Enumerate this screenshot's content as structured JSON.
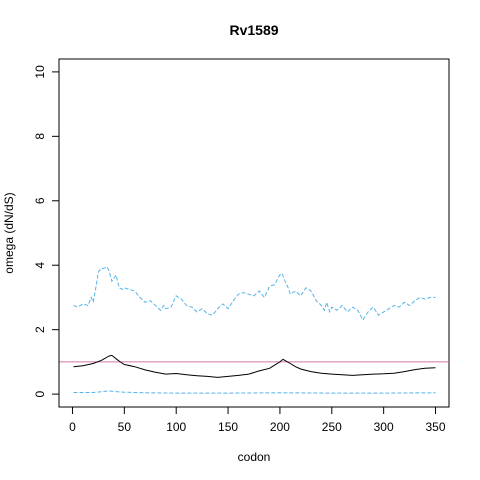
{
  "chart_data": {
    "type": "line",
    "title": "Rv1589",
    "xlabel": "codon",
    "ylabel": "omega (dN/dS)",
    "xlim": [
      -13,
      363
    ],
    "ylim": [
      -0.4,
      10.4
    ],
    "x_ticks": [
      0,
      50,
      100,
      150,
      200,
      250,
      300,
      350
    ],
    "y_ticks": [
      0,
      2,
      4,
      6,
      8,
      10
    ],
    "reference_line": {
      "y": 1,
      "color": "#cc79a7"
    },
    "series": [
      {
        "style": "dashed",
        "color": "#56b4e9",
        "x": [
          1,
          5,
          10,
          15,
          18,
          20,
          22,
          25,
          28,
          30,
          33,
          35,
          38,
          42,
          45,
          48,
          50,
          55,
          60,
          65,
          70,
          75,
          80,
          85,
          88,
          90,
          95,
          100,
          105,
          110,
          115,
          120,
          125,
          130,
          135,
          140,
          145,
          150,
          155,
          160,
          165,
          170,
          175,
          180,
          185,
          190,
          195,
          198,
          200,
          202,
          205,
          208,
          210,
          215,
          220,
          225,
          230,
          235,
          240,
          243,
          245,
          248,
          250,
          255,
          260,
          265,
          270,
          275,
          280,
          285,
          290,
          295,
          300,
          305,
          310,
          315,
          320,
          325,
          330,
          335,
          340,
          345,
          350
        ],
        "y": [
          2.75,
          2.7,
          2.8,
          2.75,
          3.0,
          2.85,
          3.2,
          3.8,
          3.9,
          3.9,
          3.95,
          3.85,
          3.5,
          3.7,
          3.3,
          3.25,
          3.3,
          3.25,
          3.2,
          3.0,
          2.85,
          2.9,
          2.75,
          2.6,
          2.75,
          2.65,
          2.7,
          3.05,
          2.95,
          2.75,
          2.7,
          2.55,
          2.65,
          2.5,
          2.45,
          2.65,
          2.8,
          2.65,
          2.9,
          3.1,
          3.15,
          3.1,
          3.05,
          3.2,
          3.0,
          3.35,
          3.4,
          3.6,
          3.7,
          3.75,
          3.5,
          3.3,
          3.1,
          3.2,
          3.05,
          3.3,
          3.2,
          2.9,
          2.75,
          2.6,
          2.85,
          2.55,
          2.7,
          2.6,
          2.75,
          2.55,
          2.7,
          2.6,
          2.3,
          2.55,
          2.7,
          2.45,
          2.55,
          2.65,
          2.75,
          2.7,
          2.85,
          2.75,
          2.9,
          3.0,
          2.95,
          3.0,
          3.0
        ]
      },
      {
        "style": "solid",
        "color": "#000000",
        "x": [
          1,
          10,
          20,
          28,
          32,
          35,
          38,
          42,
          46,
          50,
          60,
          70,
          80,
          90,
          100,
          110,
          120,
          130,
          140,
          150,
          160,
          170,
          180,
          190,
          195,
          200,
          203,
          206,
          210,
          215,
          220,
          230,
          240,
          250,
          260,
          270,
          280,
          290,
          300,
          310,
          320,
          330,
          340,
          350
        ],
        "y": [
          0.85,
          0.88,
          0.95,
          1.05,
          1.12,
          1.18,
          1.2,
          1.1,
          1.0,
          0.92,
          0.85,
          0.75,
          0.68,
          0.62,
          0.64,
          0.6,
          0.57,
          0.55,
          0.52,
          0.55,
          0.58,
          0.62,
          0.72,
          0.8,
          0.9,
          1.0,
          1.08,
          1.02,
          0.95,
          0.85,
          0.78,
          0.7,
          0.65,
          0.62,
          0.6,
          0.58,
          0.6,
          0.62,
          0.63,
          0.65,
          0.7,
          0.76,
          0.8,
          0.82
        ]
      },
      {
        "style": "dashed",
        "color": "#56b4e9",
        "x": [
          1,
          20,
          30,
          35,
          40,
          50,
          70,
          100,
          150,
          200,
          250,
          300,
          350
        ],
        "y": [
          0.05,
          0.05,
          0.08,
          0.1,
          0.08,
          0.06,
          0.04,
          0.03,
          0.03,
          0.04,
          0.03,
          0.03,
          0.04
        ]
      }
    ]
  }
}
